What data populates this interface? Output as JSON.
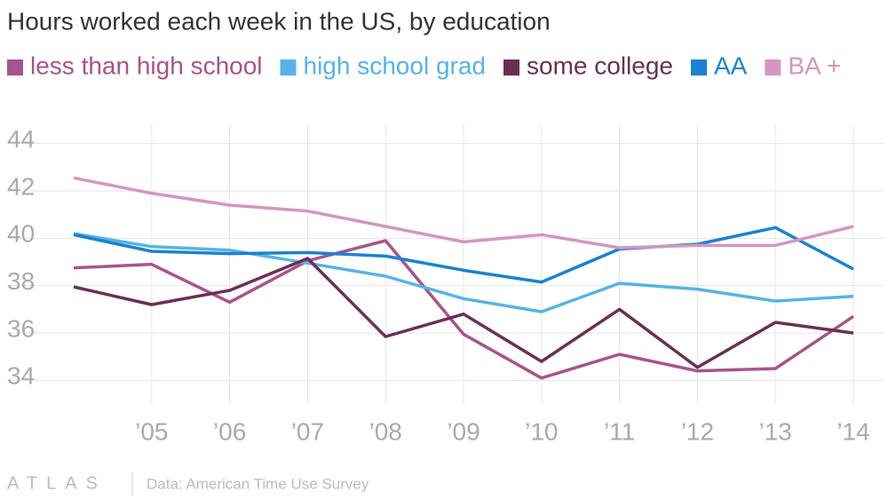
{
  "chart_data": {
    "type": "line",
    "title": "Hours worked each week in the US, by education",
    "categories": [
      null,
      "’05",
      "’06",
      "’07",
      "’08",
      "’09",
      "’10",
      "’11",
      "’12",
      "’13",
      "’14"
    ],
    "series": [
      {
        "name": "less than high school",
        "color": "#a8538e",
        "values": [
          38.75,
          38.9,
          37.3,
          39.05,
          39.9,
          35.95,
          34.1,
          35.1,
          34.4,
          34.5,
          36.7
        ]
      },
      {
        "name": "high school grad",
        "color": "#56b3e6",
        "values": [
          40.2,
          39.65,
          39.5,
          38.95,
          38.4,
          37.45,
          36.9,
          38.1,
          37.85,
          37.35,
          37.55
        ]
      },
      {
        "name": "some college",
        "color": "#6b2f56",
        "values": [
          37.95,
          37.2,
          37.8,
          39.15,
          35.85,
          36.8,
          34.8,
          37.0,
          34.55,
          36.45,
          36.0
        ]
      },
      {
        "name": "AA",
        "color": "#1a82d1",
        "values": [
          40.15,
          39.45,
          39.35,
          39.4,
          39.25,
          38.65,
          38.15,
          39.55,
          39.75,
          40.45,
          38.7
        ]
      },
      {
        "name": "BA +",
        "color": "#d496c1",
        "values": [
          42.55,
          41.9,
          41.4,
          41.15,
          40.5,
          39.85,
          40.15,
          39.6,
          39.7,
          39.7,
          40.5
        ]
      }
    ],
    "ylim": [
      33,
      45
    ],
    "yticks": [
      34,
      36,
      38,
      40,
      42,
      44
    ],
    "grid": true,
    "logo": "ATLAS",
    "source": "Data: American Time Use Survey"
  }
}
